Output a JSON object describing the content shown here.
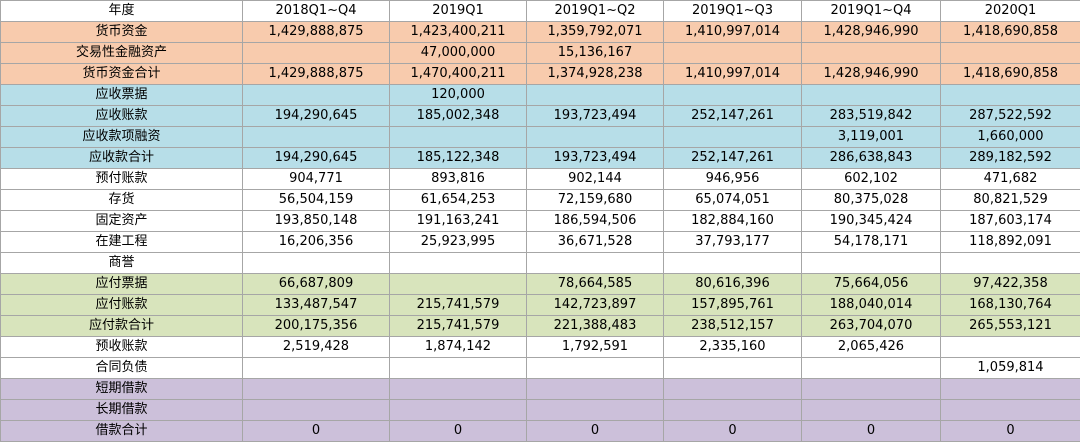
{
  "header": {
    "label": "年度",
    "periods": [
      "2018Q1~Q4",
      "2019Q1",
      "2019Q1~Q2",
      "2019Q1~Q3",
      "2019Q1~Q4",
      "2020Q1"
    ]
  },
  "rows": [
    {
      "label": "货币资金",
      "band": "orange",
      "bold": false,
      "values": [
        "1,429,888,875",
        "1,423,400,211",
        "1,359,792,071",
        "1,410,997,014",
        "1,428,946,990",
        "1,418,690,858"
      ]
    },
    {
      "label": "交易性金融资产",
      "band": "orange",
      "bold": false,
      "values": [
        "",
        "47,000,000",
        "15,136,167",
        "",
        "",
        ""
      ]
    },
    {
      "label": "货币资金合计",
      "band": "orange",
      "bold": true,
      "values": [
        "1,429,888,875",
        "1,470,400,211",
        "1,374,928,238",
        "1,410,997,014",
        "1,428,946,990",
        "1,418,690,858"
      ]
    },
    {
      "label": "应收票据",
      "band": "blue",
      "bold": false,
      "values": [
        "",
        "120,000",
        "",
        "",
        "",
        ""
      ]
    },
    {
      "label": "应收账款",
      "band": "blue",
      "bold": false,
      "values": [
        "194,290,645",
        "185,002,348",
        "193,723,494",
        "252,147,261",
        "283,519,842",
        "287,522,592"
      ]
    },
    {
      "label": "应收款项融资",
      "band": "blue",
      "bold": false,
      "values": [
        "",
        "",
        "",
        "",
        "3,119,001",
        "1,660,000"
      ]
    },
    {
      "label": "应收款合计",
      "band": "blue",
      "bold": true,
      "values": [
        "194,290,645",
        "185,122,348",
        "193,723,494",
        "252,147,261",
        "286,638,843",
        "289,182,592"
      ]
    },
    {
      "label": "预付账款",
      "band": "white",
      "bold": false,
      "values": [
        "904,771",
        "893,816",
        "902,144",
        "946,956",
        "602,102",
        "471,682"
      ]
    },
    {
      "label": "存货",
      "band": "white",
      "bold": false,
      "values": [
        "56,504,159",
        "61,654,253",
        "72,159,680",
        "65,074,051",
        "80,375,028",
        "80,821,529"
      ]
    },
    {
      "label": "固定资产",
      "band": "white",
      "bold": false,
      "values": [
        "193,850,148",
        "191,163,241",
        "186,594,506",
        "182,884,160",
        "190,345,424",
        "187,603,174"
      ]
    },
    {
      "label": "在建工程",
      "band": "white",
      "bold": false,
      "values": [
        "16,206,356",
        "25,923,995",
        "36,671,528",
        "37,793,177",
        "54,178,171",
        "118,892,091"
      ]
    },
    {
      "label": "商誉",
      "band": "white",
      "bold": false,
      "values": [
        "",
        "",
        "",
        "",
        "",
        ""
      ]
    },
    {
      "label": "应付票据",
      "band": "green",
      "bold": false,
      "values": [
        "66,687,809",
        "",
        "78,664,585",
        "80,616,396",
        "75,664,056",
        "97,422,358"
      ]
    },
    {
      "label": "应付账款",
      "band": "green",
      "bold": false,
      "values": [
        "133,487,547",
        "215,741,579",
        "142,723,897",
        "157,895,761",
        "188,040,014",
        "168,130,764"
      ]
    },
    {
      "label": "应付款合计",
      "band": "green",
      "bold": true,
      "values": [
        "200,175,356",
        "215,741,579",
        "221,388,483",
        "238,512,157",
        "263,704,070",
        "265,553,121"
      ]
    },
    {
      "label": "预收账款",
      "band": "white",
      "bold": false,
      "values": [
        "2,519,428",
        "1,874,142",
        "1,792,591",
        "2,335,160",
        "2,065,426",
        ""
      ]
    },
    {
      "label": "合同负债",
      "band": "white",
      "bold": false,
      "values": [
        "",
        "",
        "",
        "",
        "",
        "1,059,814"
      ]
    },
    {
      "label": "短期借款",
      "band": "purple",
      "bold": false,
      "values": [
        "",
        "",
        "",
        "",
        "",
        ""
      ]
    },
    {
      "label": "长期借款",
      "band": "purple",
      "bold": false,
      "values": [
        "",
        "",
        "",
        "",
        "",
        ""
      ]
    },
    {
      "label": "借款合计",
      "band": "purple",
      "bold": true,
      "values": [
        "0",
        "0",
        "0",
        "0",
        "0",
        "0"
      ]
    }
  ]
}
